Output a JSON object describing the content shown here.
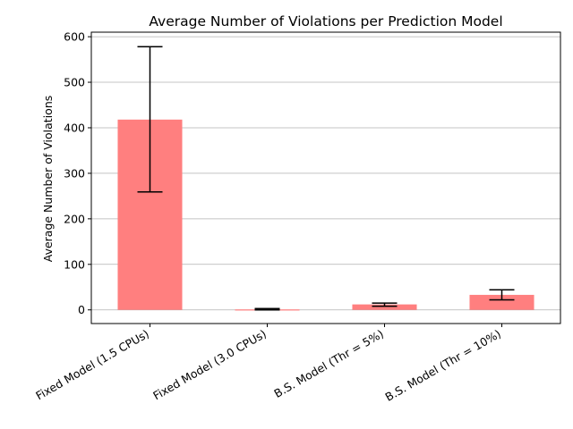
{
  "chart_data": {
    "type": "bar",
    "title": "Average Number of Violations per Prediction Model",
    "xlabel": "",
    "ylabel": "Average Number of Violations",
    "categories": [
      "Fixed Model (1.5 CPUs)",
      "Fixed Model (3.0 CPUs)",
      "B.S. Model (Thr = 5%)",
      "B.S. Model (Thr = 10%)"
    ],
    "values": [
      418,
      1,
      12,
      33
    ],
    "error_low": [
      259,
      0,
      8,
      22
    ],
    "error_high": [
      578,
      3,
      15,
      44
    ],
    "ylim": [
      -30,
      610
    ],
    "yticks": [
      0,
      100,
      200,
      300,
      400,
      500,
      600
    ],
    "grid": "y",
    "bar_color": "#ff7f7f",
    "error_color": "#000000"
  }
}
